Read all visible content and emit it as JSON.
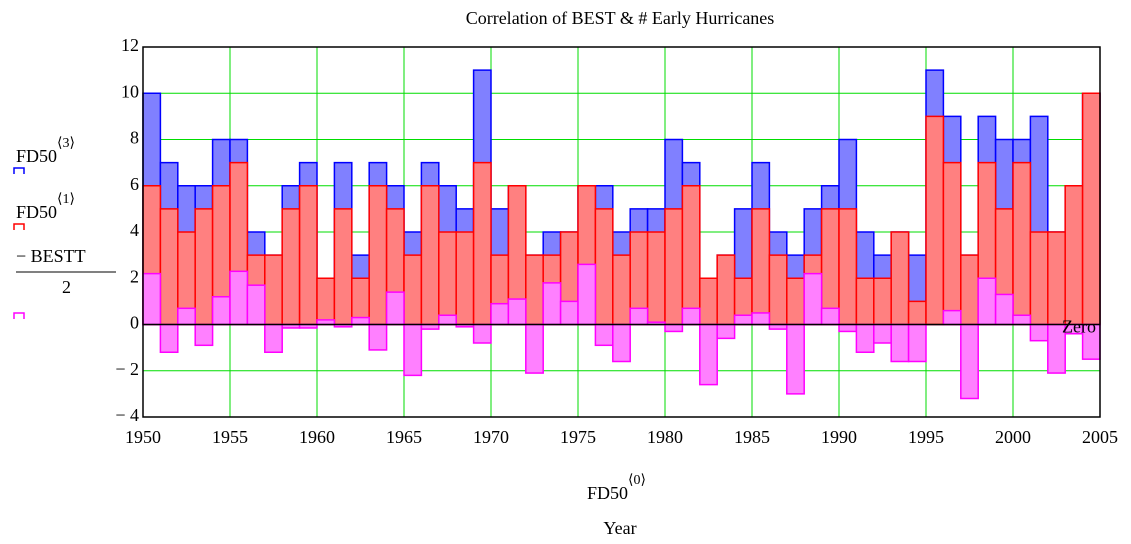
{
  "chart_data": {
    "type": "bar",
    "title": "Correlation of BEST & # Early Hurricanes",
    "x_label": {
      "name": "FD50",
      "index_label": "⟨0⟩",
      "unit": "Year"
    },
    "x": [
      1950,
      1951,
      1952,
      1953,
      1954,
      1955,
      1956,
      1957,
      1958,
      1959,
      1960,
      1961,
      1962,
      1963,
      1964,
      1965,
      1966,
      1967,
      1968,
      1969,
      1970,
      1971,
      1972,
      1973,
      1974,
      1975,
      1976,
      1977,
      1978,
      1979,
      1980,
      1981,
      1982,
      1983,
      1984,
      1985,
      1986,
      1987,
      1988,
      1989,
      1990,
      1991,
      1992,
      1993,
      1994,
      1995,
      1996,
      1997,
      1998,
      1999,
      2000,
      2001,
      2002,
      2003,
      2004
    ],
    "series": [
      {
        "name": "FD50",
        "index_label": "⟨3⟩",
        "color": "#0000ff",
        "fill": "#8080ff",
        "values": [
          10,
          7,
          6,
          6,
          8,
          8,
          4,
          3,
          6,
          7,
          2,
          7,
          3,
          7,
          6,
          4,
          7,
          6,
          5,
          11,
          5,
          6,
          3,
          4,
          4,
          6,
          6,
          4,
          5,
          5,
          8,
          7,
          2,
          3,
          5,
          7,
          4,
          3,
          5,
          6,
          8,
          4,
          3,
          4,
          3,
          11,
          9,
          3,
          9,
          8,
          8,
          9,
          4,
          6,
          10
        ]
      },
      {
        "name": "FD50",
        "index_label": "⟨1⟩",
        "color": "#ff0000",
        "fill": "#ff8080",
        "values": [
          6,
          5,
          4,
          5,
          6,
          7,
          3,
          3,
          5,
          6,
          2,
          5,
          2,
          6,
          5,
          3,
          6,
          4,
          4,
          7,
          3,
          6,
          3,
          3,
          4,
          6,
          5,
          3,
          4,
          4,
          5,
          6,
          2,
          3,
          2,
          5,
          3,
          2,
          3,
          5,
          5,
          2,
          2,
          4,
          1,
          9,
          7,
          3,
          7,
          5,
          7,
          4,
          4,
          6,
          10
        ]
      },
      {
        "name": "− BESTT",
        "denominator": "2",
        "color": "#ff00ff",
        "fill": "#ff80ff",
        "values": [
          2.2,
          -1.2,
          0.7,
          -0.9,
          1.2,
          2.3,
          1.7,
          -1.2,
          -0.15,
          -0.15,
          0.2,
          -0.1,
          0.3,
          -1.1,
          1.4,
          -2.2,
          -0.2,
          0.4,
          -0.1,
          -0.8,
          0.9,
          1.1,
          -2.1,
          1.8,
          1.0,
          2.6,
          -0.9,
          -1.6,
          0.7,
          0.1,
          -0.3,
          0.7,
          -2.6,
          -0.6,
          0.4,
          0.5,
          -0.2,
          -3.0,
          2.2,
          0.7,
          -0.3,
          -1.2,
          -0.8,
          -1.6,
          -1.6,
          0,
          0.6,
          -3.2,
          2.0,
          1.3,
          0.4,
          -0.7,
          -2.1,
          -0.4,
          -1.5
        ]
      }
    ],
    "zero_label": "Zero",
    "xlim": [
      1950,
      2005
    ],
    "xticks": [
      1950,
      1955,
      1960,
      1965,
      1970,
      1975,
      1980,
      1985,
      1990,
      1995,
      2000,
      2005
    ],
    "ylim": [
      -4,
      12
    ],
    "yticks": [
      {
        "value": -4,
        "label": "− 4"
      },
      {
        "value": -2,
        "label": "− 2"
      },
      0,
      2,
      4,
      6,
      8,
      10,
      12
    ],
    "grid": true,
    "grid_color": "#00dd00"
  }
}
